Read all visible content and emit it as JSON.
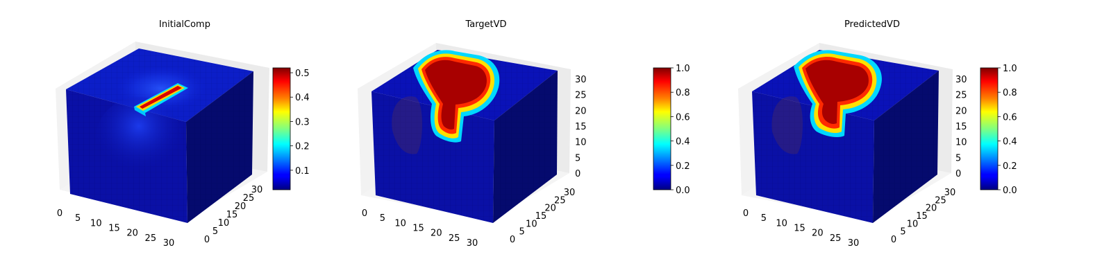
{
  "chart_data": [
    {
      "type": "voxel3d",
      "title": "InitialComp",
      "grid_size": [
        32,
        32,
        32
      ],
      "x_ticks": [
        "0",
        "5",
        "10",
        "15",
        "20",
        "25",
        "30"
      ],
      "y_ticks": [
        "0",
        "5",
        "10",
        "15",
        "20",
        "25",
        "30"
      ],
      "z_ticks": [],
      "colormap": "jet",
      "colorbar": {
        "min": 0.02,
        "max": 0.52,
        "ticks": [
          "0.1",
          "0.2",
          "0.3",
          "0.4",
          "0.5"
        ],
        "tick_values": [
          0.1,
          0.2,
          0.3,
          0.4,
          0.5
        ]
      },
      "feature": "short thin bar on top face, peak 0.52, diffuse blue halo"
    },
    {
      "type": "voxel3d",
      "title": "TargetVD",
      "grid_size": [
        32,
        32,
        32
      ],
      "x_ticks": [
        "0",
        "5",
        "10",
        "15",
        "20",
        "25",
        "30"
      ],
      "y_ticks": [
        "0",
        "5",
        "10",
        "15",
        "20",
        "25",
        "30"
      ],
      "z_ticks": [
        "0",
        "5",
        "10",
        "15",
        "20",
        "25",
        "30"
      ],
      "colormap": "jet",
      "colorbar": {
        "min": 0.0,
        "max": 1.0,
        "ticks": [
          "0.0",
          "0.2",
          "0.4",
          "0.6",
          "0.8",
          "1.0"
        ],
        "tick_values": [
          0.0,
          0.2,
          0.4,
          0.6,
          0.8,
          1.0
        ]
      },
      "feature": "curved sock-shaped region at value 1.0 descending into the volume"
    },
    {
      "type": "voxel3d",
      "title": "PredictedVD",
      "grid_size": [
        32,
        32,
        32
      ],
      "x_ticks": [
        "0",
        "5",
        "10",
        "15",
        "20",
        "25",
        "30"
      ],
      "y_ticks": [
        "0",
        "5",
        "10",
        "15",
        "20",
        "25",
        "30"
      ],
      "z_ticks": [
        "0",
        "5",
        "10",
        "15",
        "20",
        "25",
        "30"
      ],
      "colormap": "jet",
      "colorbar": {
        "min": 0.0,
        "max": 1.0,
        "ticks": [
          "0.0",
          "0.2",
          "0.4",
          "0.6",
          "0.8",
          "1.0"
        ],
        "tick_values": [
          0.0,
          0.2,
          0.4,
          0.6,
          0.8,
          1.0
        ]
      },
      "feature": "curved sock-shaped region at value 1.0, slightly shallower than target"
    }
  ]
}
